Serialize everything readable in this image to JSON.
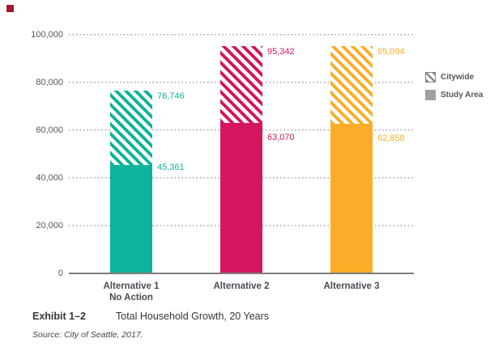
{
  "marker": {
    "color": "#A6192E"
  },
  "legend": {
    "items": [
      {
        "label": "Citywide",
        "style": "hatched"
      },
      {
        "label": "Study Area",
        "style": "solid"
      }
    ]
  },
  "caption": {
    "exhibit": "Exhibit 1–2",
    "title": "Total Household Growth, 20 Years",
    "source": "Source: City of Seattle, 2017."
  },
  "chart_data": {
    "type": "bar",
    "subtype": "stacked-total",
    "categories": [
      "Alternative 1 No Action",
      "Alternative 2",
      "Alternative 3"
    ],
    "category_lines": [
      [
        "Alternative 1",
        "No Action"
      ],
      [
        "Alternative 2"
      ],
      [
        "Alternative 3"
      ]
    ],
    "series": [
      {
        "name": "Citywide",
        "style": "hatched",
        "values": [
          76746,
          95342,
          95094
        ]
      },
      {
        "name": "Study Area",
        "style": "solid",
        "values": [
          45361,
          63070,
          62858
        ]
      }
    ],
    "value_labels": {
      "citywide": [
        "76,746",
        "95,342",
        "95,094"
      ],
      "study_area": [
        "45,361",
        "63,070",
        "62,858"
      ]
    },
    "bar_colors": [
      "#0db39a",
      "#d5155e",
      "#fbad29"
    ],
    "title": "",
    "xlabel": "",
    "ylabel": "",
    "ylim": [
      0,
      100000
    ],
    "ytick_interval": 20000,
    "yticks": [
      "0",
      "20,000",
      "40,000",
      "60,000",
      "80,000",
      "100,000"
    ],
    "grid": "horizontal-dotted",
    "legend_position": "right",
    "note": "Citywide value is the total bar height (hatched top segment); Study Area value is the solid lower segment."
  }
}
